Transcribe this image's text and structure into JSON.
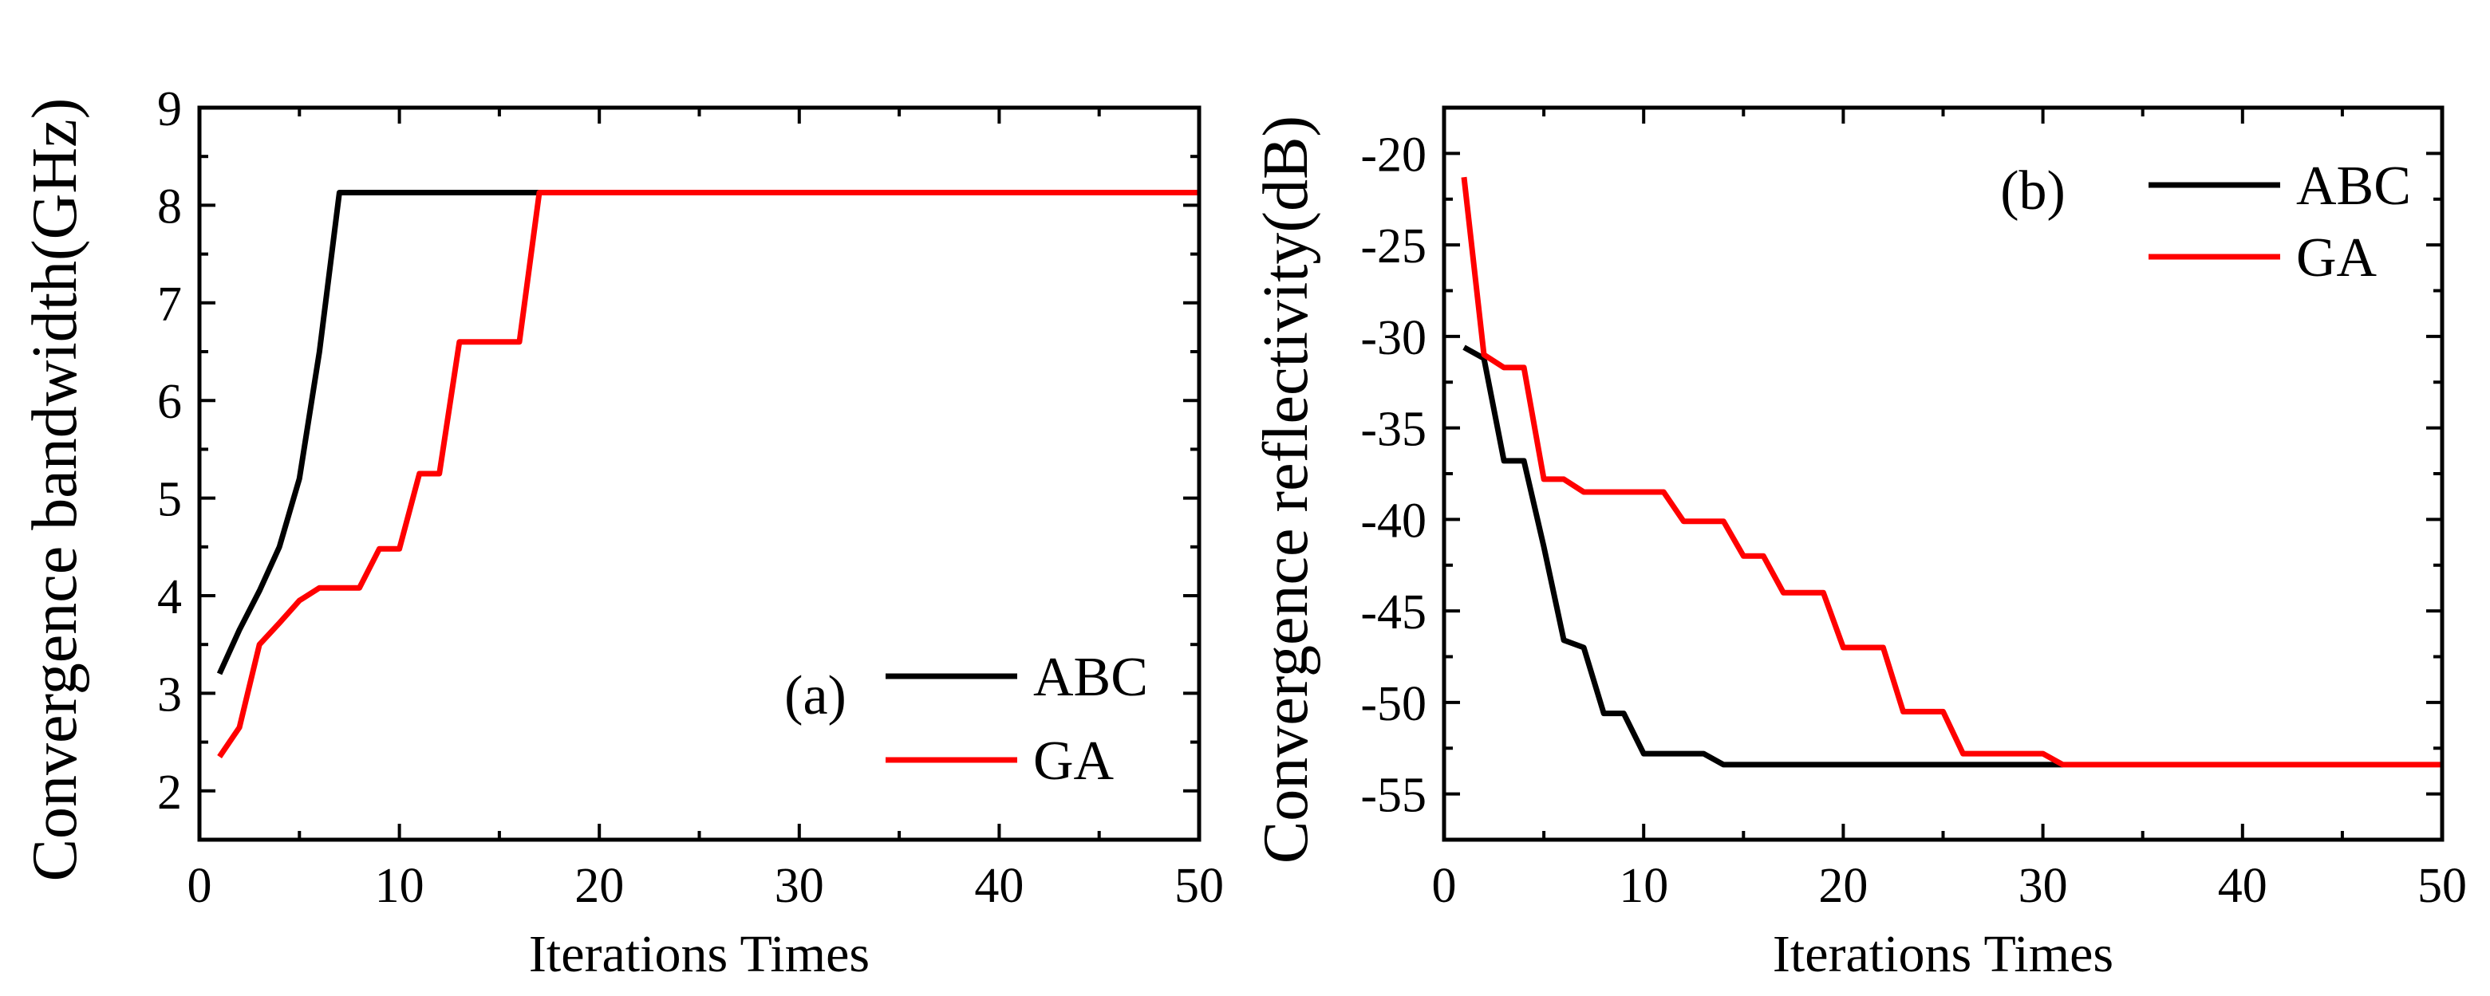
{
  "chart_data": [
    {
      "type": "line",
      "panel_label": "(a)",
      "xlabel": "Iterations Times",
      "ylabel": "Convergence bandwidth(GHz)",
      "xlim": [
        0,
        50
      ],
      "ylim": [
        1.5,
        9
      ],
      "xticks": [
        0,
        10,
        20,
        30,
        40,
        50
      ],
      "yticks": [
        2,
        3,
        4,
        5,
        6,
        7,
        8,
        9
      ],
      "legend_position": "bottom-right",
      "series": [
        {
          "name": "ABC",
          "color": "#000000",
          "x": [
            1,
            2,
            3,
            4,
            5,
            6,
            7,
            8,
            10,
            12,
            14,
            16,
            17
          ],
          "y": [
            3.2,
            3.65,
            4.05,
            4.5,
            5.2,
            6.5,
            8.13,
            8.13,
            8.13,
            8.13,
            8.13,
            8.13,
            8.13
          ]
        },
        {
          "name": "GA",
          "color": "#ff0000",
          "x": [
            1,
            2,
            3,
            4,
            5,
            6,
            7,
            8,
            9,
            10,
            11,
            12,
            13,
            14,
            15,
            16,
            17,
            20,
            30,
            40,
            50
          ],
          "y": [
            2.35,
            2.65,
            3.5,
            3.72,
            3.95,
            4.08,
            4.08,
            4.08,
            4.48,
            4.48,
            5.25,
            5.25,
            6.6,
            6.6,
            6.6,
            6.6,
            8.13,
            8.13,
            8.13,
            8.13,
            8.13
          ]
        }
      ]
    },
    {
      "type": "line",
      "panel_label": "(b)",
      "xlabel": "Iterations Times",
      "ylabel": "Convergence reflectivity(dB)",
      "xlim": [
        0,
        50
      ],
      "ylim": [
        -57.5,
        -17.5
      ],
      "xticks": [
        0,
        10,
        20,
        30,
        40,
        50
      ],
      "yticks": [
        -20,
        -25,
        -30,
        -35,
        -40,
        -45,
        -50,
        -55
      ],
      "legend_position": "top-right",
      "series": [
        {
          "name": "ABC",
          "color": "#000000",
          "x": [
            1,
            2,
            3,
            4,
            5,
            6,
            7,
            8,
            9,
            10,
            11,
            12,
            13,
            14,
            15,
            20,
            25,
            30,
            31
          ],
          "y": [
            -30.6,
            -31.2,
            -36.8,
            -36.8,
            -41.5,
            -46.6,
            -47.0,
            -50.6,
            -50.6,
            -52.8,
            -52.8,
            -52.8,
            -52.8,
            -53.4,
            -53.4,
            -53.4,
            -53.4,
            -53.4,
            -53.4
          ]
        },
        {
          "name": "GA",
          "color": "#ff0000",
          "x": [
            1,
            2,
            3,
            4,
            5,
            6,
            7,
            8,
            9,
            10,
            11,
            12,
            13,
            14,
            15,
            16,
            17,
            18,
            19,
            20,
            21,
            22,
            23,
            24,
            25,
            26,
            27,
            28,
            29,
            30,
            31,
            35,
            40,
            45,
            50
          ],
          "y": [
            -21.3,
            -31.0,
            -31.7,
            -31.7,
            -37.8,
            -37.8,
            -38.5,
            -38.5,
            -38.5,
            -38.5,
            -38.5,
            -40.1,
            -40.1,
            -40.1,
            -42.0,
            -42.0,
            -44.0,
            -44.0,
            -44.0,
            -47.0,
            -47.0,
            -47.0,
            -50.5,
            -50.5,
            -50.5,
            -52.8,
            -52.8,
            -52.8,
            -52.8,
            -52.8,
            -53.4,
            -53.4,
            -53.4,
            -53.4,
            -53.4
          ]
        }
      ]
    }
  ]
}
